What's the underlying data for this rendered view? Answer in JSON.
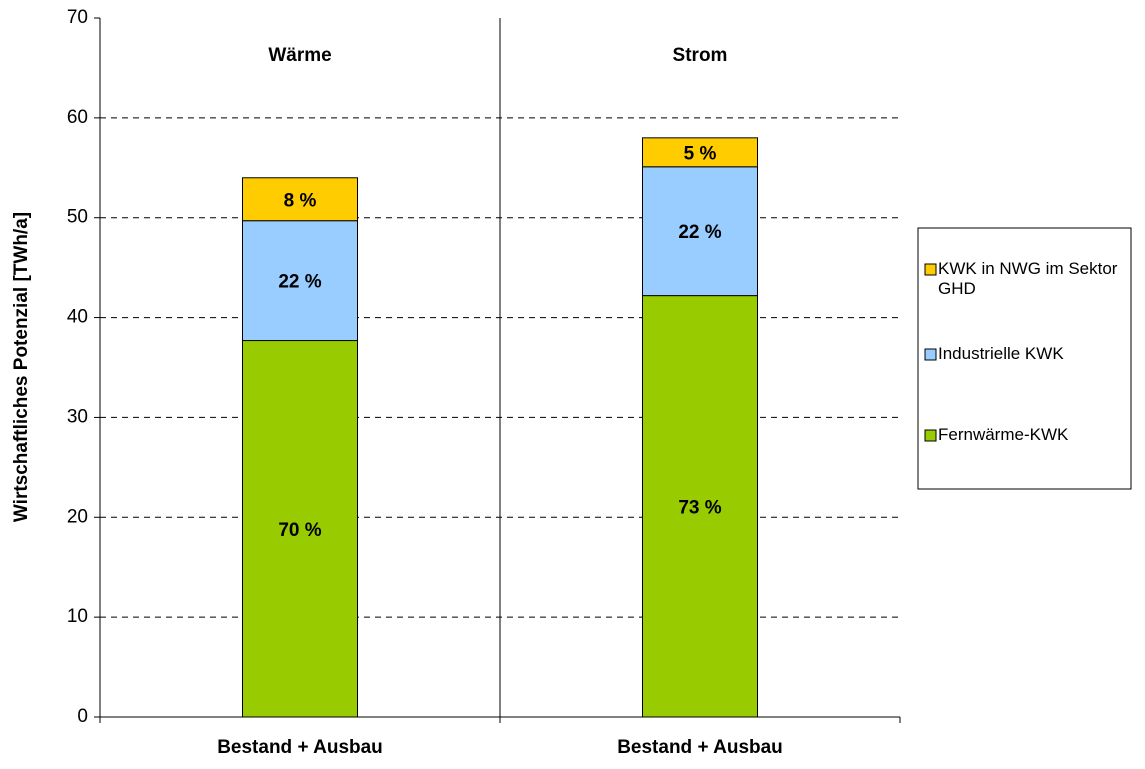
{
  "chart_data": {
    "type": "stacked_bar",
    "ylabel": "Wirtschaftliches Potenzial [TWh/a]",
    "panel_titles": [
      "Wärme",
      "Strom"
    ],
    "categories": [
      "Bestand + Ausbau",
      "Bestand + Ausbau"
    ],
    "series": [
      {
        "name": "Fernwärme-KWK",
        "color": "#99cc00",
        "values": [
          37.7,
          42.2
        ],
        "value_labels": [
          "70 %",
          "73 %"
        ]
      },
      {
        "name": "Industrielle KWK",
        "color": "#99ccff",
        "values": [
          12,
          12.9
        ],
        "value_labels": [
          "22 %",
          "22 %"
        ]
      },
      {
        "name": "KWK in NWG im Sektor GHD",
        "color": "#ffcc00",
        "values": [
          4.3,
          2.9
        ],
        "value_labels": [
          "8 %",
          "5 %"
        ]
      }
    ],
    "ylim": [
      0,
      70
    ],
    "yticks": [
      0,
      10,
      20,
      30,
      40,
      50,
      60,
      70
    ],
    "grid": true,
    "legend": "right"
  }
}
